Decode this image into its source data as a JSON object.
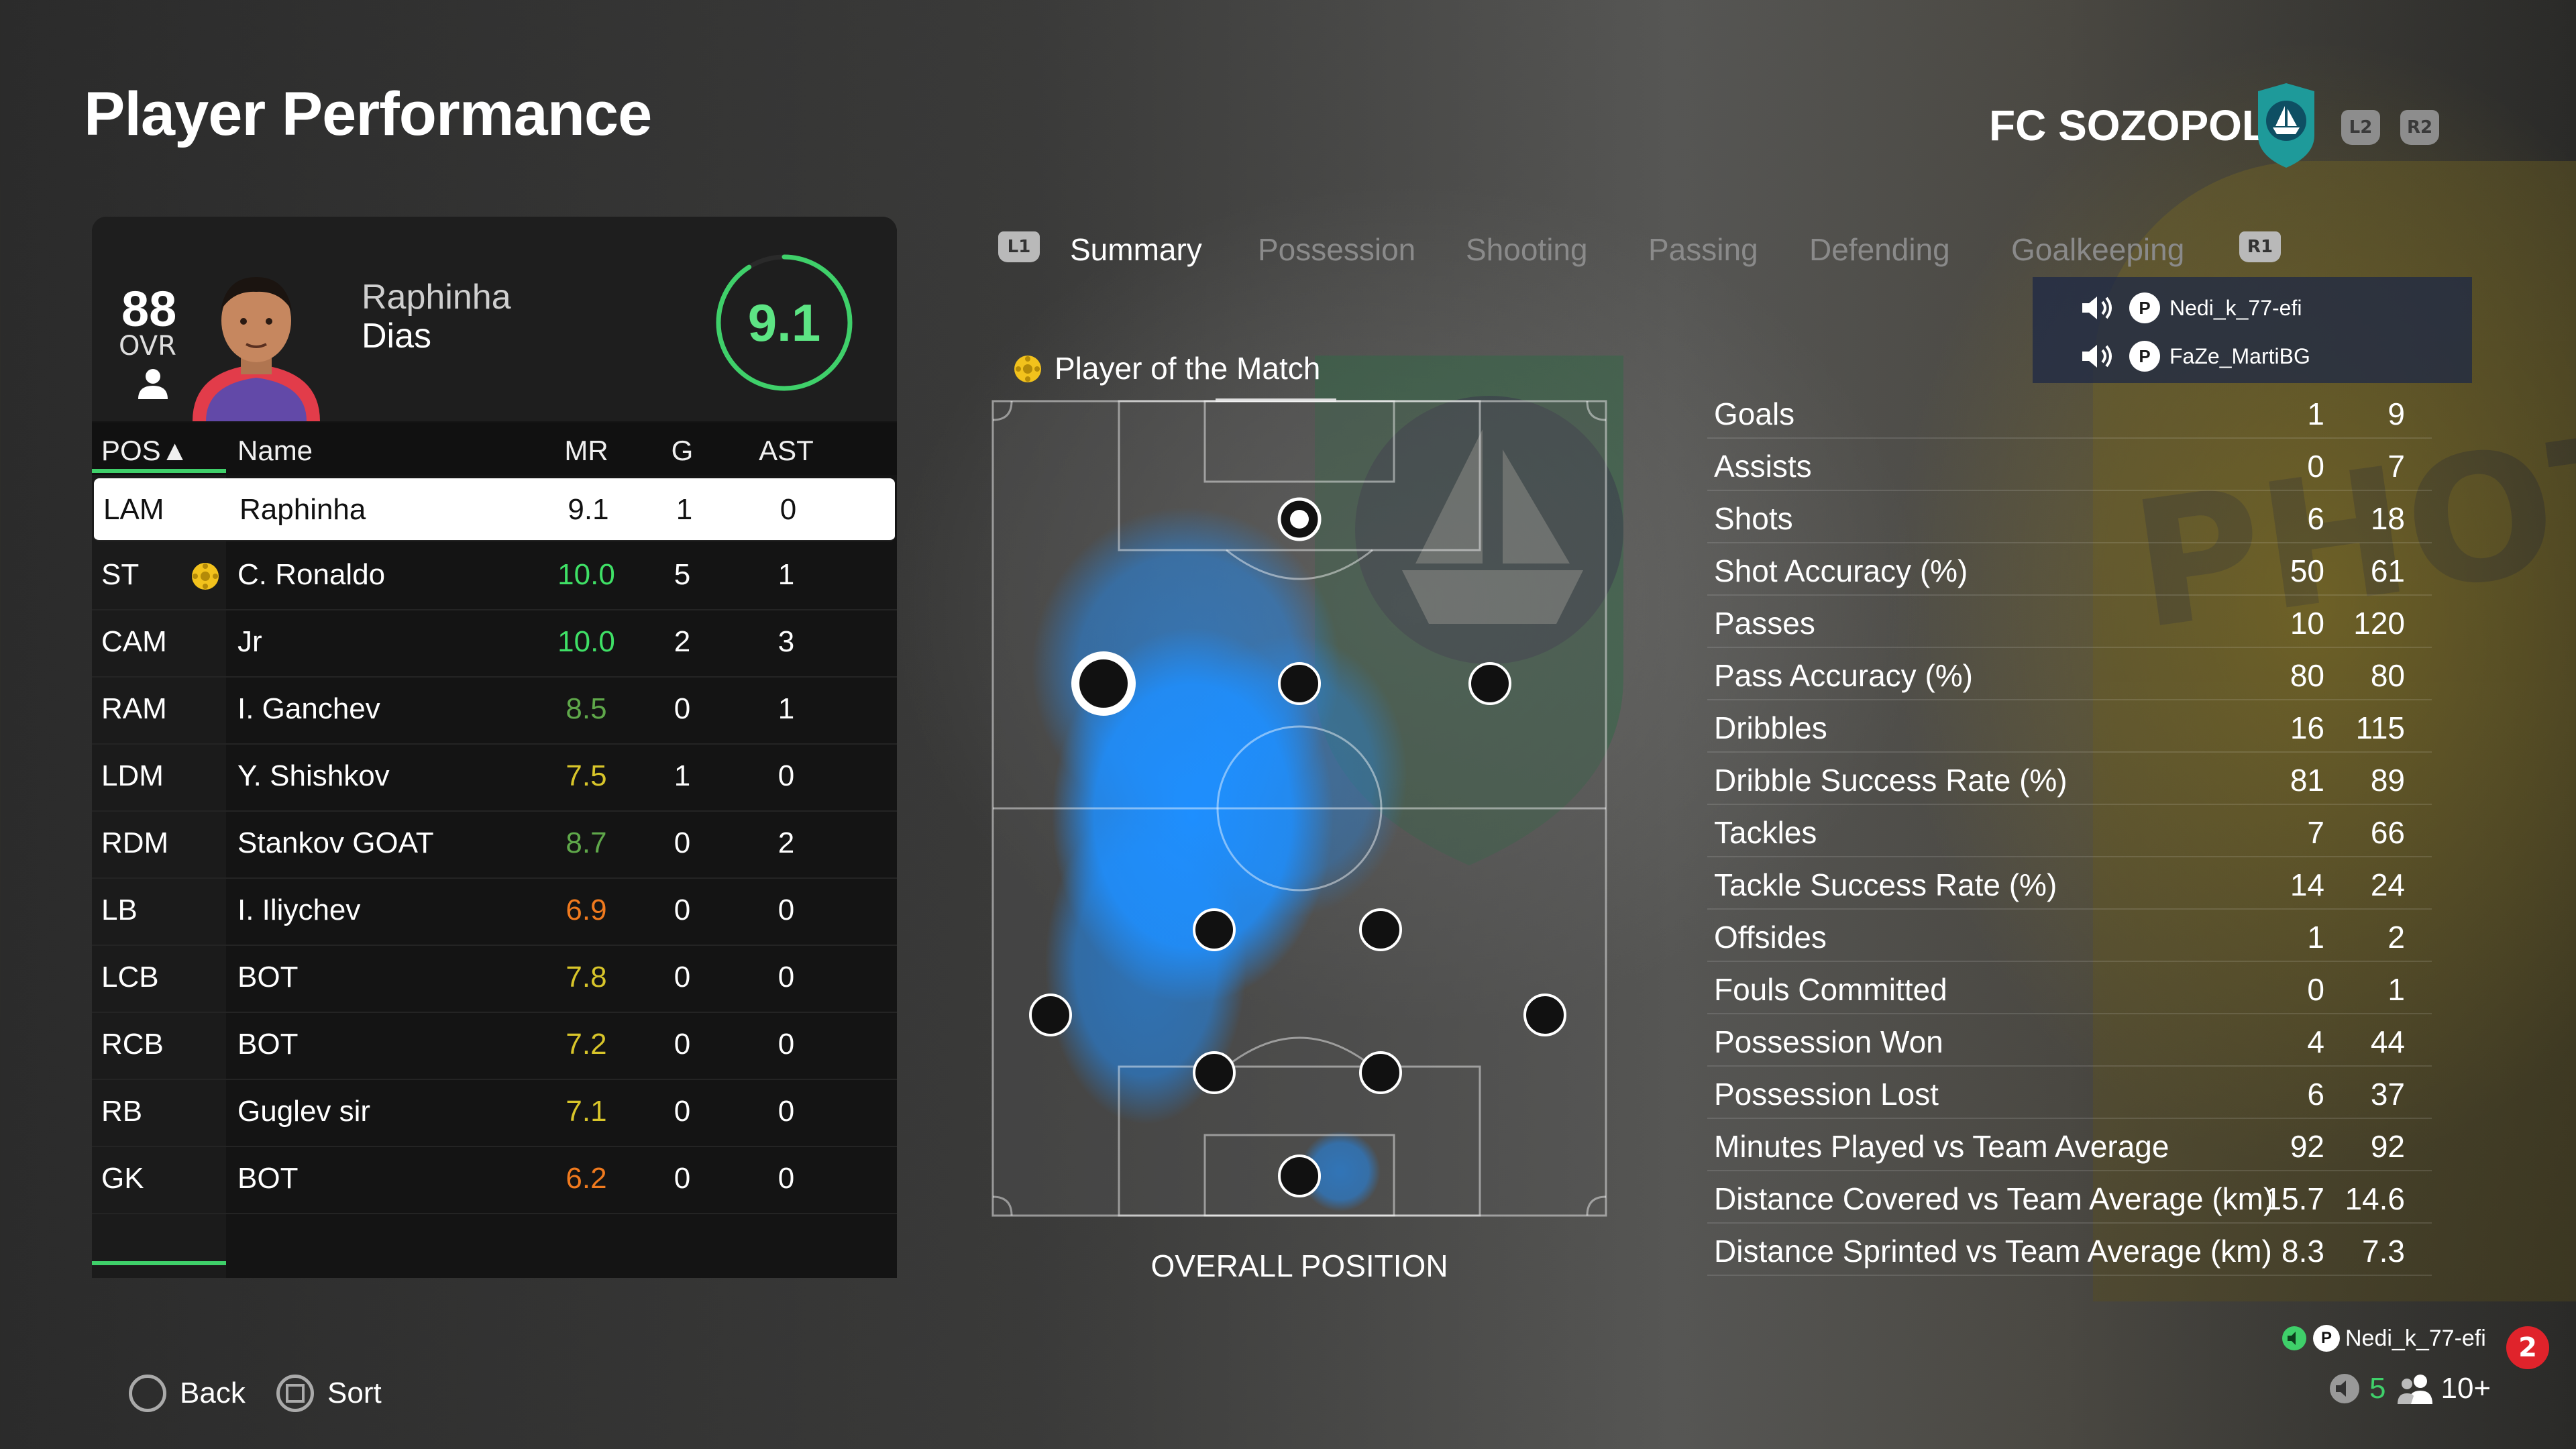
{
  "header": {
    "title": "Player Performance",
    "club": "FC SOZOPOL",
    "trigger_left": "L2",
    "trigger_right": "R2"
  },
  "player": {
    "ovr": "88",
    "ovr_label": "OVR",
    "first_name": "Raphinha",
    "last_name": "Dias",
    "rating": "9.1",
    "rating_fraction": 0.91
  },
  "table": {
    "headers": {
      "pos": "POS▲",
      "name": "Name",
      "mr": "MR",
      "g": "G",
      "ast": "AST"
    },
    "rows": [
      {
        "pos": "LAM",
        "name": "Raphinha",
        "mr": "9.1",
        "g": "1",
        "ast": "0",
        "mr_color": "#111111",
        "selected": true
      },
      {
        "pos": "ST",
        "name": "C. Ronaldo",
        "mr": "10.0",
        "g": "5",
        "ast": "1",
        "mr_color": "#3fe066",
        "potm": true
      },
      {
        "pos": "CAM",
        "name": "Jr",
        "mr": "10.0",
        "g": "2",
        "ast": "3",
        "mr_color": "#3fe066"
      },
      {
        "pos": "RAM",
        "name": "I. Ganchev",
        "mr": "8.5",
        "g": "0",
        "ast": "1",
        "mr_color": "#5fa84a"
      },
      {
        "pos": "LDM",
        "name": "Y. Shishkov",
        "mr": "7.5",
        "g": "1",
        "ast": "0",
        "mr_color": "#d8c52a"
      },
      {
        "pos": "RDM",
        "name": "Stankov GOAT",
        "mr": "8.7",
        "g": "0",
        "ast": "2",
        "mr_color": "#5fa84a"
      },
      {
        "pos": "LB",
        "name": "I. Iliychev",
        "mr": "6.9",
        "g": "0",
        "ast": "0",
        "mr_color": "#f07a1e"
      },
      {
        "pos": "LCB",
        "name": "BOT",
        "mr": "7.8",
        "g": "0",
        "ast": "0",
        "mr_color": "#d8c52a"
      },
      {
        "pos": "RCB",
        "name": "BOT",
        "mr": "7.2",
        "g": "0",
        "ast": "0",
        "mr_color": "#d8c52a"
      },
      {
        "pos": "RB",
        "name": "Guglev sir",
        "mr": "7.1",
        "g": "0",
        "ast": "0",
        "mr_color": "#d8c52a"
      },
      {
        "pos": "GK",
        "name": "BOT",
        "mr": "6.2",
        "g": "0",
        "ast": "0",
        "mr_color": "#f07a1e"
      }
    ]
  },
  "tabs": {
    "left_button": "L1",
    "right_button": "R1",
    "items": [
      {
        "label": "Summary",
        "active": true
      },
      {
        "label": "Possession"
      },
      {
        "label": "Shooting"
      },
      {
        "label": "Passing"
      },
      {
        "label": "Defending"
      },
      {
        "label": "Goalkeeping"
      }
    ]
  },
  "pitch": {
    "potm_label": "Player of the Match",
    "caption": "OVERALL POSITION"
  },
  "voice": {
    "users": [
      "Nedi_k_77-efi",
      "FaZe_MartiBG"
    ]
  },
  "stats": [
    {
      "label": "Goals",
      "a": "1",
      "b": "9"
    },
    {
      "label": "Assists",
      "a": "0",
      "b": "7"
    },
    {
      "label": "Shots",
      "a": "6",
      "b": "18"
    },
    {
      "label": "Shot Accuracy (%)",
      "a": "50",
      "b": "61"
    },
    {
      "label": "Passes",
      "a": "10",
      "b": "120"
    },
    {
      "label": "Pass Accuracy (%)",
      "a": "80",
      "b": "80"
    },
    {
      "label": "Dribbles",
      "a": "16",
      "b": "115"
    },
    {
      "label": "Dribble Success Rate (%)",
      "a": "81",
      "b": "89"
    },
    {
      "label": "Tackles",
      "a": "7",
      "b": "66"
    },
    {
      "label": "Tackle Success Rate (%)",
      "a": "14",
      "b": "24"
    },
    {
      "label": "Offsides",
      "a": "1",
      "b": "2"
    },
    {
      "label": "Fouls Committed",
      "a": "0",
      "b": "1"
    },
    {
      "label": "Possession Won",
      "a": "4",
      "b": "44"
    },
    {
      "label": "Possession Lost",
      "a": "6",
      "b": "37"
    },
    {
      "label": "Minutes Played vs Team Average",
      "a": "92",
      "b": "92"
    },
    {
      "label": "Distance Covered vs Team Average (km)",
      "a": "15.7",
      "b": "14.6"
    },
    {
      "label": "Distance Sprinted vs Team Average (km)",
      "a": "8.3",
      "b": "7.3"
    }
  ],
  "footer": {
    "back_label": "Back",
    "sort_label": "Sort",
    "mic_user": "Nedi_k_77-efi",
    "notifications": "2",
    "party_count": "5",
    "players_count": "10+"
  },
  "colors": {
    "accent_green": "#3fd06a",
    "heat_blue": "#1e8fff",
    "notif_red": "#e0232b"
  }
}
